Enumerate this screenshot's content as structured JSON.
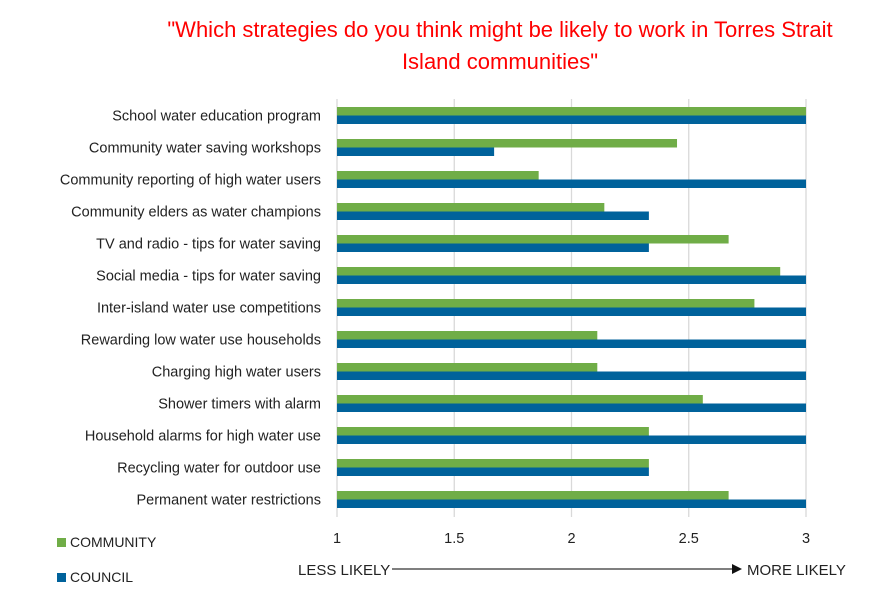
{
  "chart_data": {
    "type": "bar",
    "orientation": "horizontal",
    "title": "\"Which strategies do you think might be likely to work in Torres Strait Island communities\"",
    "categories": [
      "School water education program",
      "Community water saving workshops",
      "Community reporting of high water users",
      "Community elders as water champions",
      "TV and radio - tips for water saving",
      "Social media - tips for water saving",
      "Inter-island water use competitions",
      "Rewarding low water use households",
      "Charging high water users",
      "Shower timers with alarm",
      "Household alarms for high water use",
      "Recycling water for outdoor use",
      "Permanent water restrictions"
    ],
    "series": [
      {
        "name": "COMMUNITY",
        "color": "#70ad47",
        "values": [
          3.0,
          2.45,
          1.86,
          2.14,
          2.67,
          2.89,
          2.78,
          2.11,
          2.11,
          2.56,
          2.33,
          2.33,
          2.67
        ]
      },
      {
        "name": "COUNCIL",
        "color": "#00629b",
        "values": [
          3.0,
          1.67,
          3.0,
          2.33,
          2.33,
          3.0,
          3.0,
          3.0,
          3.0,
          3.0,
          3.0,
          2.33,
          3.0
        ]
      }
    ],
    "xlim": [
      1,
      3
    ],
    "xticks": [
      "1",
      "1.5",
      "2",
      "2.5",
      "3"
    ],
    "xtick_values": [
      1,
      1.5,
      2,
      2.5,
      3
    ],
    "xlabel_left": "LESS LIKELY",
    "xlabel_right": "MORE LIKELY",
    "grid": "vertical",
    "legend_position": "bottom-left",
    "title_color": "#ff0000"
  }
}
